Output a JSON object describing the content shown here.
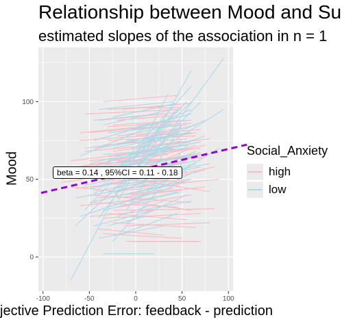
{
  "chart_data": {
    "type": "line",
    "title": "Relationship between Mood and Su",
    "subtitle": "estimated slopes of the association in n =  1",
    "xlabel": "jective Prediction Error: feedback - prediction",
    "ylabel": "Mood",
    "xlim": [
      -105,
      105
    ],
    "ylim": [
      -22,
      135
    ],
    "x_ticks": [
      -100,
      -50,
      0,
      50,
      100
    ],
    "y_ticks": [
      0,
      50,
      100
    ],
    "grid": true,
    "legend_title": "Social_Anxiety",
    "legend_position": "right",
    "series": [
      {
        "name": "high",
        "color": "#ffb6c1",
        "segments": [
          [
            -90,
            55,
            50,
            70
          ],
          [
            -80,
            48,
            45,
            60
          ],
          [
            -60,
            75,
            60,
            80
          ],
          [
            -50,
            40,
            60,
            35
          ],
          [
            -40,
            52,
            55,
            62
          ],
          [
            -35,
            100,
            45,
            104
          ],
          [
            -30,
            65,
            50,
            72
          ],
          [
            -30,
            28,
            55,
            24
          ],
          [
            -25,
            85,
            55,
            88
          ],
          [
            -20,
            47,
            60,
            50
          ],
          [
            -15,
            58,
            60,
            66
          ],
          [
            -10,
            36,
            60,
            30
          ],
          [
            -55,
            92,
            50,
            95
          ],
          [
            -45,
            70,
            40,
            80
          ],
          [
            -40,
            18,
            30,
            14
          ],
          [
            -60,
            33,
            20,
            38
          ],
          [
            -20,
            78,
            70,
            82
          ],
          [
            -10,
            90,
            45,
            93
          ],
          [
            -5,
            60,
            65,
            72
          ],
          [
            0,
            45,
            75,
            56
          ],
          [
            -70,
            62,
            -10,
            66
          ],
          [
            -25,
            52,
            80,
            42
          ],
          [
            -30,
            42,
            45,
            46
          ],
          [
            -40,
            60,
            70,
            64
          ],
          [
            -50,
            80,
            40,
            85
          ],
          [
            -35,
            25,
            70,
            28
          ],
          [
            -15,
            70,
            80,
            76
          ],
          [
            -45,
            45,
            30,
            55
          ],
          [
            -20,
            32,
            60,
            40
          ],
          [
            -10,
            10,
            70,
            10
          ],
          [
            -30,
            95,
            30,
            97
          ],
          [
            -60,
            58,
            -5,
            62
          ],
          [
            -5,
            82,
            55,
            85
          ],
          [
            0,
            55,
            60,
            70
          ],
          [
            -40,
            38,
            40,
            44
          ],
          [
            -25,
            22,
            65,
            19
          ],
          [
            10,
            60,
            70,
            67
          ],
          [
            -55,
            68,
            20,
            72
          ],
          [
            -15,
            95,
            60,
            99
          ],
          [
            -30,
            75,
            65,
            78
          ],
          [
            -45,
            50,
            60,
            48
          ],
          [
            -5,
            40,
            75,
            45
          ],
          [
            20,
            65,
            75,
            72
          ],
          [
            -20,
            88,
            40,
            91
          ],
          [
            -65,
            44,
            -10,
            48
          ],
          [
            -35,
            58,
            10,
            63
          ],
          [
            -25,
            30,
            85,
            31
          ],
          [
            0,
            78,
            60,
            84
          ],
          [
            -10,
            52,
            45,
            60
          ],
          [
            -50,
            26,
            20,
            30
          ],
          [
            -70,
            45,
            -15,
            42
          ],
          [
            -35,
            15,
            50,
            12
          ],
          [
            -5,
            96,
            50,
            96
          ],
          [
            -60,
            80,
            10,
            84
          ],
          [
            -20,
            62,
            75,
            64
          ],
          [
            5,
            48,
            85,
            58
          ],
          [
            -30,
            50,
            40,
            58
          ],
          [
            -40,
            88,
            30,
            92
          ],
          [
            15,
            75,
            65,
            80
          ],
          [
            -15,
            44,
            90,
            50
          ],
          [
            -45,
            35,
            45,
            32
          ],
          [
            -25,
            68,
            55,
            74
          ],
          [
            -55,
            56,
            15,
            58
          ],
          [
            -10,
            20,
            80,
            22
          ],
          [
            -30,
            84,
            60,
            86
          ],
          [
            -20,
            38,
            50,
            43
          ],
          [
            0,
            66,
            70,
            70
          ],
          [
            -35,
            72,
            55,
            76
          ],
          [
            -50,
            62,
            35,
            66
          ],
          [
            -15,
            56,
            55,
            61
          ]
        ]
      },
      {
        "name": "low",
        "color": "#add8e6",
        "segments": [
          [
            -70,
            -15,
            35,
            105
          ],
          [
            -65,
            20,
            50,
            85
          ],
          [
            -55,
            30,
            40,
            90
          ],
          [
            -45,
            40,
            60,
            110
          ],
          [
            -40,
            25,
            30,
            80
          ],
          [
            -35,
            45,
            55,
            100
          ],
          [
            -30,
            50,
            45,
            95
          ],
          [
            -25,
            10,
            50,
            60
          ],
          [
            -20,
            35,
            60,
            120
          ],
          [
            -15,
            55,
            60,
            100
          ],
          [
            -10,
            30,
            50,
            85
          ],
          [
            0,
            50,
            95,
            128
          ],
          [
            5,
            60,
            70,
            100
          ],
          [
            10,
            40,
            60,
            75
          ],
          [
            15,
            65,
            95,
            95
          ],
          [
            20,
            45,
            90,
            70
          ],
          [
            -60,
            55,
            40,
            70
          ],
          [
            -50,
            60,
            50,
            75
          ],
          [
            -40,
            70,
            55,
            80
          ],
          [
            -30,
            80,
            50,
            85
          ],
          [
            -20,
            65,
            55,
            72
          ],
          [
            -10,
            75,
            40,
            78
          ],
          [
            -80,
            50,
            20,
            63
          ],
          [
            -50,
            35,
            60,
            50
          ],
          [
            -40,
            42,
            50,
            56
          ],
          [
            -30,
            32,
            40,
            45
          ],
          [
            -20,
            48,
            55,
            55
          ],
          [
            -10,
            22,
            55,
            40
          ],
          [
            0,
            38,
            65,
            55
          ],
          [
            10,
            55,
            65,
            62
          ],
          [
            -60,
            65,
            60,
            95
          ],
          [
            -45,
            75,
            45,
            90
          ],
          [
            -35,
            85,
            40,
            95
          ],
          [
            -25,
            90,
            45,
            99
          ],
          [
            -15,
            60,
            35,
            68
          ],
          [
            -5,
            45,
            50,
            62
          ],
          [
            5,
            70,
            75,
            88
          ],
          [
            -55,
            46,
            30,
            58
          ],
          [
            -30,
            40,
            60,
            58
          ],
          [
            -20,
            26,
            30,
            36
          ],
          [
            -45,
            20,
            20,
            30
          ],
          [
            -35,
            30,
            50,
            42
          ],
          [
            -25,
            55,
            35,
            62
          ],
          [
            -15,
            15,
            45,
            28
          ],
          [
            -5,
            70,
            45,
            80
          ],
          [
            -65,
            38,
            30,
            48
          ],
          [
            -50,
            55,
            70,
            66
          ],
          [
            -40,
            48,
            40,
            60
          ],
          [
            -30,
            62,
            60,
            75
          ],
          [
            -20,
            72,
            65,
            85
          ],
          [
            -10,
            82,
            60,
            92
          ],
          [
            0,
            62,
            75,
            78
          ],
          [
            10,
            50,
            70,
            58
          ],
          [
            -35,
            2,
            20,
            2
          ],
          [
            -60,
            26,
            10,
            40
          ],
          [
            -45,
            58,
            25,
            72
          ],
          [
            -25,
            44,
            45,
            52
          ],
          [
            -15,
            40,
            55,
            48
          ],
          [
            -5,
            52,
            65,
            60
          ],
          [
            5,
            30,
            60,
            36
          ],
          [
            -55,
            70,
            20,
            76
          ],
          [
            -40,
            95,
            40,
            100
          ],
          [
            -30,
            58,
            70,
            65
          ],
          [
            -20,
            50,
            80,
            60
          ],
          [
            -10,
            65,
            70,
            74
          ],
          [
            0,
            85,
            60,
            88
          ],
          [
            -50,
            44,
            10,
            52
          ],
          [
            -40,
            12,
            30,
            20
          ],
          [
            -25,
            70,
            60,
            80
          ],
          [
            -5,
            35,
            45,
            42
          ],
          [
            -35,
            66,
            55,
            70
          ],
          [
            -15,
            78,
            35,
            84
          ],
          [
            -45,
            88,
            25,
            92
          ],
          [
            15,
            55,
            65,
            68
          ],
          [
            -30,
            20,
            10,
            26
          ]
        ]
      }
    ],
    "fit_line": {
      "intercept": 55.5,
      "slope": 0.14,
      "color": "#9400d3",
      "style": "dashed"
    },
    "annotation": "beta =  0.14 , 95%CI =  0.11 - 0.18"
  }
}
